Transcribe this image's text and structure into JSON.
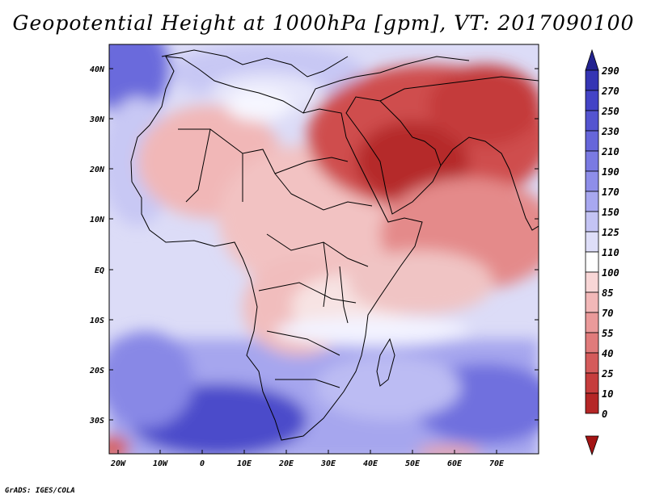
{
  "title": "Geopotential Height at 1000hPa [gpm], VT: 2017090100",
  "footer": "GrADS: IGES/COLA",
  "axes": {
    "x_ticks": [
      "20W",
      "10W",
      "0",
      "10E",
      "20E",
      "30E",
      "40E",
      "50E",
      "60E",
      "70E"
    ],
    "y_ticks": [
      "40N",
      "30N",
      "20N",
      "10N",
      "EQ",
      "10S",
      "20S",
      "30S"
    ]
  },
  "colorbar": {
    "labels": [
      "290",
      "270",
      "250",
      "230",
      "210",
      "190",
      "170",
      "150",
      "125",
      "110",
      "100",
      "85",
      "70",
      "55",
      "40",
      "25",
      "10",
      "0"
    ],
    "colors": [
      "#2b2b9c",
      "#3535b4",
      "#4343c6",
      "#5454d0",
      "#6666da",
      "#7a7ae2",
      "#8e8ee9",
      "#a8a8f0",
      "#c4c4f4",
      "#dedef8",
      "#ffffff",
      "#f8d6d6",
      "#f2b8b8",
      "#ea9a9a",
      "#e07b7b",
      "#d45b5b",
      "#c63d3d",
      "#b52626",
      "#a41414"
    ]
  }
}
